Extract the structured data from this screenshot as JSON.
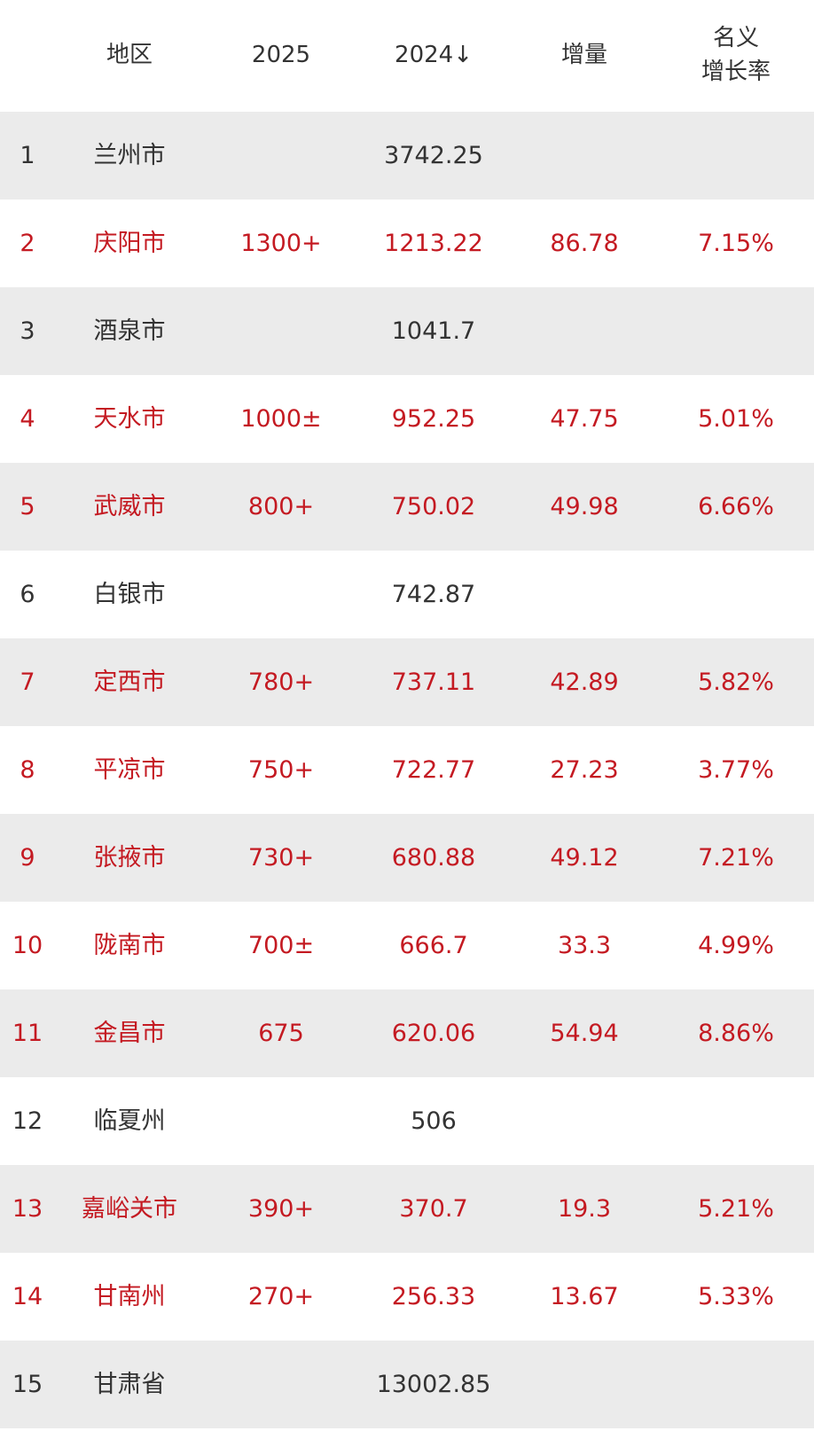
{
  "header": {
    "rank": "",
    "region": "地区",
    "y2025": "2025",
    "y2024": "2024↓",
    "increase": "增量",
    "rate_line1": "名义",
    "rate_line2": "增长率"
  },
  "colors": {
    "highlight_text": "#c41a22",
    "normal_text": "#333333",
    "stripe": "#ebebeb"
  },
  "rows": [
    {
      "rank": "1",
      "region": "兰州市",
      "y2025": "",
      "y2024": "3742.25",
      "increase": "",
      "rate": "",
      "highlight": false
    },
    {
      "rank": "2",
      "region": "庆阳市",
      "y2025": "1300+",
      "y2024": "1213.22",
      "increase": "86.78",
      "rate": "7.15%",
      "highlight": true
    },
    {
      "rank": "3",
      "region": "酒泉市",
      "y2025": "",
      "y2024": "1041.7",
      "increase": "",
      "rate": "",
      "highlight": false
    },
    {
      "rank": "4",
      "region": "天水市",
      "y2025": "1000±",
      "y2024": "952.25",
      "increase": "47.75",
      "rate": "5.01%",
      "highlight": true
    },
    {
      "rank": "5",
      "region": "武威市",
      "y2025": "800+",
      "y2024": "750.02",
      "increase": "49.98",
      "rate": "6.66%",
      "highlight": true
    },
    {
      "rank": "6",
      "region": "白银市",
      "y2025": "",
      "y2024": "742.87",
      "increase": "",
      "rate": "",
      "highlight": false
    },
    {
      "rank": "7",
      "region": "定西市",
      "y2025": "780+",
      "y2024": "737.11",
      "increase": "42.89",
      "rate": "5.82%",
      "highlight": true
    },
    {
      "rank": "8",
      "region": "平凉市",
      "y2025": "750+",
      "y2024": "722.77",
      "increase": "27.23",
      "rate": "3.77%",
      "highlight": true
    },
    {
      "rank": "9",
      "region": "张掖市",
      "y2025": "730+",
      "y2024": "680.88",
      "increase": "49.12",
      "rate": "7.21%",
      "highlight": true
    },
    {
      "rank": "10",
      "region": "陇南市",
      "y2025": "700±",
      "y2024": "666.7",
      "increase": "33.3",
      "rate": "4.99%",
      "highlight": true
    },
    {
      "rank": "11",
      "region": "金昌市",
      "y2025": "675",
      "y2024": "620.06",
      "increase": "54.94",
      "rate": "8.86%",
      "highlight": true
    },
    {
      "rank": "12",
      "region": "临夏州",
      "y2025": "",
      "y2024": "506",
      "increase": "",
      "rate": "",
      "highlight": false
    },
    {
      "rank": "13",
      "region": "嘉峪关市",
      "y2025": "390+",
      "y2024": "370.7",
      "increase": "19.3",
      "rate": "5.21%",
      "highlight": true
    },
    {
      "rank": "14",
      "region": "甘南州",
      "y2025": "270+",
      "y2024": "256.33",
      "increase": "13.67",
      "rate": "5.33%",
      "highlight": true
    },
    {
      "rank": "15",
      "region": "甘肃省",
      "y2025": "",
      "y2024": "13002.85",
      "increase": "",
      "rate": "",
      "highlight": false
    }
  ]
}
